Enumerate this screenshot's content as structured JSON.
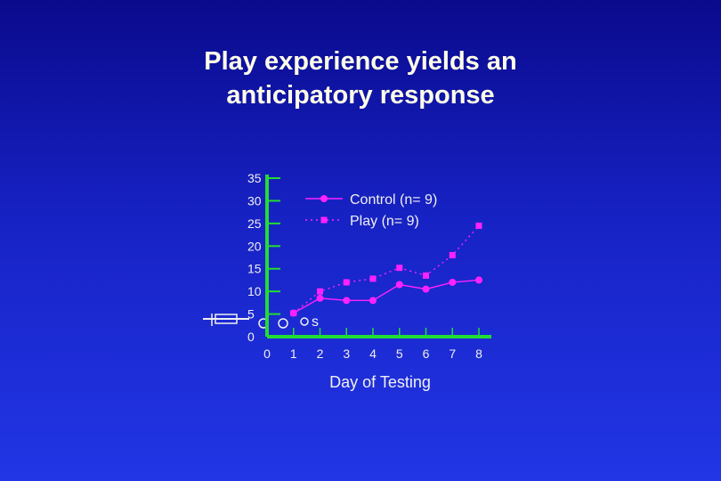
{
  "title_lines": [
    "Play experience yields an",
    "anticipatory response"
  ],
  "chart_data": {
    "type": "line",
    "x": [
      0,
      1,
      2,
      3,
      4,
      5,
      6,
      7,
      8
    ],
    "xlabel": "Day of Testing",
    "ylabel": "",
    "xlim": [
      0,
      8
    ],
    "ylim": [
      0,
      35
    ],
    "x_ticks": [
      0,
      1,
      2,
      3,
      4,
      5,
      6,
      7,
      8
    ],
    "y_ticks": [
      0,
      5,
      10,
      15,
      20,
      25,
      30,
      35
    ],
    "legend_placement": "top-right",
    "grid": false,
    "series": [
      {
        "name": "Control (n= 9)",
        "x": [
          1,
          2,
          3,
          4,
          5,
          6,
          7,
          8
        ],
        "values": [
          5.2,
          8.5,
          8,
          8,
          11.5,
          10.5,
          12,
          12.5
        ],
        "marker": "circle",
        "line_style": "solid",
        "color": "#ff22ff"
      },
      {
        "name": "Play (n= 9)",
        "x": [
          1,
          2,
          3,
          4,
          5,
          6,
          7,
          8
        ],
        "values": [
          5.2,
          10,
          12,
          12.8,
          15.2,
          13.5,
          18,
          24.5
        ],
        "marker": "square",
        "line_style": "dotted",
        "color": "#ff22ff"
      }
    ],
    "artifact_text": "s",
    "colors": {
      "axis": "#22dd33",
      "text": "#f0f0f0",
      "marker": "#ff22ff",
      "title": "#ffffe8"
    }
  }
}
